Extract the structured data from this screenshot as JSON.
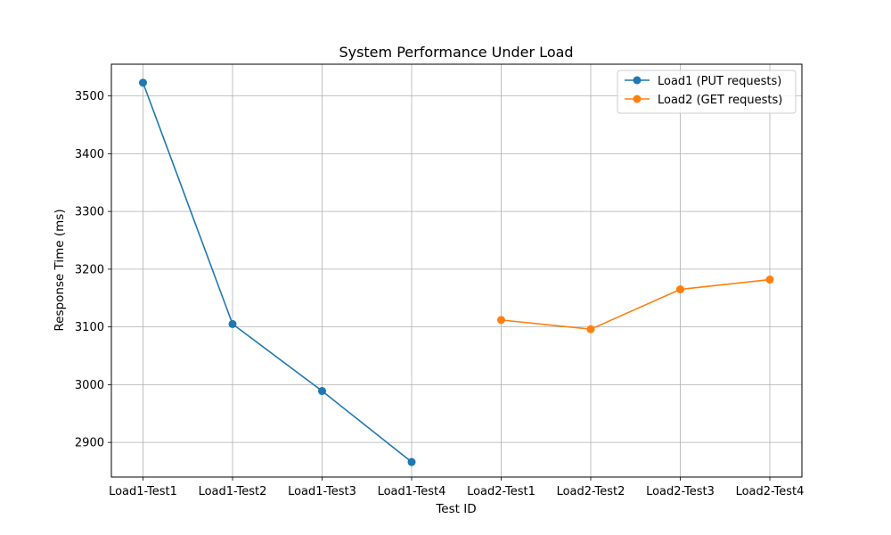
{
  "chart_data": {
    "type": "line",
    "title": "System Performance Under Load",
    "xlabel": "Test ID",
    "ylabel": "Response Time (ms)",
    "categories": [
      "Load1-Test1",
      "Load1-Test2",
      "Load1-Test3",
      "Load1-Test4",
      "Load2-Test1",
      "Load2-Test2",
      "Load2-Test3",
      "Load2-Test4"
    ],
    "ylim": [
      2840,
      3555
    ],
    "yticks": [
      2900,
      3000,
      3100,
      3200,
      3300,
      3400,
      3500
    ],
    "grid": true,
    "legend_position": "top-right",
    "series": [
      {
        "name": "Load1 (PUT requests)",
        "color": "#1f77b4",
        "x": [
          "Load1-Test1",
          "Load1-Test2",
          "Load1-Test3",
          "Load1-Test4"
        ],
        "values": [
          3523,
          3105,
          2989,
          2866
        ]
      },
      {
        "name": "Load2 (GET requests)",
        "color": "#ff7f0e",
        "x": [
          "Load2-Test1",
          "Load2-Test2",
          "Load2-Test3",
          "Load2-Test4"
        ],
        "values": [
          3112,
          3096,
          3165,
          3182
        ]
      }
    ]
  }
}
